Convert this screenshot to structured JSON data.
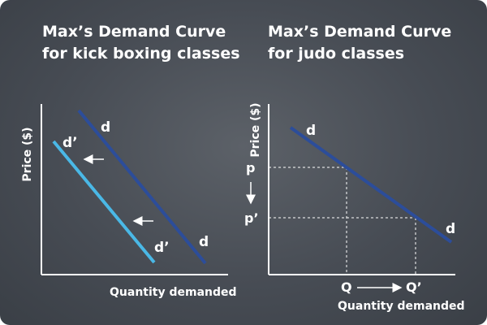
{
  "left_panel": {
    "title_line1": "Max’s Demand Curve",
    "title_line2": "for kick boxing classes",
    "y_axis_label": "Price ($)",
    "x_axis_label": "Quantity demanded",
    "curve_d_label": "d",
    "curve_d_prime_label": "d’",
    "curve_d_color": "#2c4d9a",
    "curve_d_prime_color": "#4ab8e6"
  },
  "right_panel": {
    "title_line1": "Max’s Demand Curve",
    "title_line2": "for judo classes",
    "y_axis_label": "Price ($)",
    "x_axis_label": "Quantity demanded",
    "curve_label": "d",
    "price_high": "p",
    "price_low": "p’",
    "quantity_low": "Q",
    "quantity_high": "Q’",
    "curve_color": "#2c4d9a"
  },
  "colors": {
    "background": "#474c54",
    "text": "#ffffff"
  }
}
